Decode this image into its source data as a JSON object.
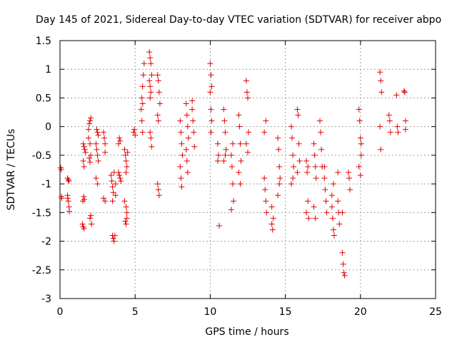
{
  "chart_data": {
    "type": "scatter",
    "title": "Day 145 of 2021, Sidereal Day-to-day VTEC variation (SDTVAR) for receiver abpo",
    "xlabel": "GPS time / hours",
    "ylabel": "SDTVAR / TECUs",
    "xlim": [
      0,
      25
    ],
    "ylim": [
      -3,
      1.5
    ],
    "xticks": [
      0,
      5,
      10,
      15,
      20,
      25
    ],
    "yticks": [
      -3,
      -2.5,
      -2,
      -1.5,
      -1,
      -0.5,
      0,
      0.5,
      1,
      1.5
    ],
    "xtick_labels": [
      "0",
      "5",
      "10",
      "15",
      "20",
      "25"
    ],
    "ytick_labels": [
      "-3",
      "-2.5",
      "-2",
      "-1.5",
      "-1",
      "-0.5",
      "0",
      "0.5",
      "1",
      "1.5"
    ],
    "grid": true,
    "marker": "plus",
    "color": "#e00000",
    "series": [
      {
        "name": "SDTVAR",
        "points": [
          [
            0.05,
            -0.72
          ],
          [
            0.08,
            -0.75
          ],
          [
            0.1,
            -1.22
          ],
          [
            0.12,
            -1.25
          ],
          [
            0.5,
            -0.9
          ],
          [
            0.55,
            -0.93
          ],
          [
            0.6,
            -0.95
          ],
          [
            0.5,
            -1.2
          ],
          [
            0.55,
            -1.3
          ],
          [
            0.6,
            -1.4
          ],
          [
            0.62,
            -1.48
          ],
          [
            0.52,
            -1.25
          ],
          [
            1.5,
            -1.7
          ],
          [
            1.55,
            -1.75
          ],
          [
            1.6,
            -1.78
          ],
          [
            1.52,
            -1.3
          ],
          [
            1.58,
            -1.22
          ],
          [
            1.62,
            -1.27
          ],
          [
            1.55,
            -0.3
          ],
          [
            1.6,
            -0.35
          ],
          [
            1.65,
            -0.4
          ],
          [
            1.7,
            -0.45
          ],
          [
            1.55,
            -0.6
          ],
          [
            1.6,
            -0.7
          ],
          [
            1.9,
            -0.05
          ],
          [
            1.95,
            0.05
          ],
          [
            2.0,
            0.1
          ],
          [
            2.05,
            0.15
          ],
          [
            1.9,
            -0.2
          ],
          [
            2.0,
            -0.3
          ],
          [
            1.95,
            -0.55
          ],
          [
            2.0,
            -0.62
          ],
          [
            2.05,
            -0.5
          ],
          [
            2.0,
            -1.6
          ],
          [
            2.05,
            -1.55
          ],
          [
            2.1,
            -1.7
          ],
          [
            2.4,
            -0.3
          ],
          [
            2.45,
            -0.4
          ],
          [
            2.5,
            -0.5
          ],
          [
            2.55,
            -0.6
          ],
          [
            2.4,
            -0.9
          ],
          [
            2.5,
            -1.0
          ],
          [
            2.45,
            -0.05
          ],
          [
            2.5,
            -0.1
          ],
          [
            2.55,
            -0.15
          ],
          [
            2.9,
            -0.1
          ],
          [
            2.95,
            -0.2
          ],
          [
            3.0,
            -0.3
          ],
          [
            3.0,
            -0.45
          ],
          [
            2.9,
            -1.25
          ],
          [
            3.0,
            -1.3
          ],
          [
            3.4,
            -0.85
          ],
          [
            3.45,
            -0.95
          ],
          [
            3.5,
            -1.05
          ],
          [
            3.55,
            -1.15
          ],
          [
            3.6,
            -0.8
          ],
          [
            3.5,
            -1.3
          ],
          [
            3.5,
            -1.9
          ],
          [
            3.55,
            -1.95
          ],
          [
            3.6,
            -2.0
          ],
          [
            3.65,
            -1.9
          ],
          [
            3.7,
            -1.0
          ],
          [
            3.7,
            -1.2
          ],
          [
            3.9,
            -0.8
          ],
          [
            3.95,
            -0.85
          ],
          [
            4.0,
            -0.9
          ],
          [
            4.05,
            -0.95
          ],
          [
            3.9,
            -0.3
          ],
          [
            3.95,
            -0.2
          ],
          [
            4.0,
            -0.25
          ],
          [
            4.3,
            -0.4
          ],
          [
            4.35,
            -0.5
          ],
          [
            4.4,
            -0.6
          ],
          [
            4.45,
            -0.7
          ],
          [
            4.3,
            -1.3
          ],
          [
            4.4,
            -1.4
          ],
          [
            4.45,
            -1.5
          ],
          [
            4.35,
            -1.65
          ],
          [
            4.4,
            -1.7
          ],
          [
            4.45,
            -1.6
          ],
          [
            4.4,
            -0.8
          ],
          [
            4.5,
            -0.45
          ],
          [
            4.9,
            -0.1
          ],
          [
            4.95,
            -0.05
          ],
          [
            5.0,
            -0.15
          ],
          [
            5.4,
            0.3
          ],
          [
            5.45,
            0.5
          ],
          [
            5.5,
            0.7
          ],
          [
            5.55,
            0.9
          ],
          [
            5.6,
            1.1
          ],
          [
            5.5,
            0.4
          ],
          [
            5.45,
            0.1
          ],
          [
            5.5,
            -0.1
          ],
          [
            5.95,
            1.3
          ],
          [
            6.0,
            1.2
          ],
          [
            6.05,
            1.1
          ],
          [
            6.1,
            0.9
          ],
          [
            5.95,
            0.8
          ],
          [
            6.0,
            0.7
          ],
          [
            6.05,
            0.6
          ],
          [
            6.0,
            0.5
          ],
          [
            6.0,
            -0.1
          ],
          [
            6.05,
            -0.2
          ],
          [
            6.1,
            -0.35
          ],
          [
            6.5,
            0.9
          ],
          [
            6.55,
            0.8
          ],
          [
            6.6,
            0.6
          ],
          [
            6.65,
            0.4
          ],
          [
            6.5,
            0.2
          ],
          [
            6.55,
            0.1
          ],
          [
            6.5,
            -1.0
          ],
          [
            6.55,
            -1.1
          ],
          [
            6.6,
            -1.2
          ],
          [
            8.0,
            0.1
          ],
          [
            8.05,
            -0.1
          ],
          [
            8.1,
            -0.3
          ],
          [
            8.15,
            -0.5
          ],
          [
            8.0,
            -0.7
          ],
          [
            8.05,
            -0.9
          ],
          [
            8.1,
            -1.05
          ],
          [
            8.4,
            0.4
          ],
          [
            8.45,
            0.2
          ],
          [
            8.5,
            0.0
          ],
          [
            8.55,
            -0.2
          ],
          [
            8.4,
            -0.4
          ],
          [
            8.45,
            -0.6
          ],
          [
            8.5,
            -0.8
          ],
          [
            8.8,
            0.3
          ],
          [
            8.85,
            0.1
          ],
          [
            8.9,
            -0.1
          ],
          [
            8.95,
            -0.35
          ],
          [
            8.8,
            0.45
          ],
          [
            10.0,
            1.1
          ],
          [
            10.05,
            0.9
          ],
          [
            10.1,
            0.7
          ],
          [
            10.0,
            0.6
          ],
          [
            10.05,
            0.3
          ],
          [
            10.1,
            0.1
          ],
          [
            10.05,
            -0.1
          ],
          [
            10.5,
            -0.3
          ],
          [
            10.55,
            -0.5
          ],
          [
            10.6,
            -1.73
          ],
          [
            10.5,
            -0.6
          ],
          [
            10.9,
            0.3
          ],
          [
            10.95,
            0.1
          ],
          [
            11.0,
            -0.1
          ],
          [
            11.05,
            -0.4
          ],
          [
            10.9,
            -0.6
          ],
          [
            11.0,
            -0.5
          ],
          [
            11.4,
            -0.5
          ],
          [
            11.45,
            -0.7
          ],
          [
            11.5,
            -1.0
          ],
          [
            11.55,
            -1.3
          ],
          [
            11.4,
            -1.45
          ],
          [
            11.5,
            -0.3
          ],
          [
            11.9,
            0.2
          ],
          [
            11.95,
            0.0
          ],
          [
            12.0,
            -0.3
          ],
          [
            12.05,
            -0.6
          ],
          [
            11.9,
            -0.8
          ],
          [
            12.0,
            -1.0
          ],
          [
            12.4,
            0.8
          ],
          [
            12.45,
            0.6
          ],
          [
            12.5,
            0.5
          ],
          [
            12.55,
            -0.1
          ],
          [
            12.4,
            -0.3
          ],
          [
            12.5,
            -0.45
          ],
          [
            13.6,
            -0.9
          ],
          [
            13.65,
            -1.1
          ],
          [
            13.7,
            -1.3
          ],
          [
            13.75,
            -1.5
          ],
          [
            13.6,
            -0.1
          ],
          [
            13.7,
            0.1
          ],
          [
            14.1,
            -1.7
          ],
          [
            14.15,
            -1.8
          ],
          [
            14.2,
            -1.6
          ],
          [
            14.1,
            -1.4
          ],
          [
            14.5,
            -0.2
          ],
          [
            14.55,
            -0.4
          ],
          [
            14.6,
            -0.7
          ],
          [
            14.65,
            -0.9
          ],
          [
            14.5,
            -1.2
          ],
          [
            14.6,
            -1.0
          ],
          [
            15.4,
            0.0
          ],
          [
            15.45,
            -0.2
          ],
          [
            15.5,
            -0.5
          ],
          [
            15.55,
            -0.7
          ],
          [
            15.4,
            -1.0
          ],
          [
            15.5,
            -0.9
          ],
          [
            15.8,
            0.3
          ],
          [
            15.85,
            0.2
          ],
          [
            15.9,
            -0.3
          ],
          [
            15.95,
            -0.6
          ],
          [
            15.8,
            -0.8
          ],
          [
            16.4,
            -0.6
          ],
          [
            16.45,
            -0.8
          ],
          [
            16.5,
            -1.3
          ],
          [
            16.55,
            -1.6
          ],
          [
            16.4,
            -1.5
          ],
          [
            16.5,
            -0.7
          ],
          [
            16.9,
            -0.3
          ],
          [
            16.95,
            -0.5
          ],
          [
            17.0,
            -0.7
          ],
          [
            17.05,
            -0.9
          ],
          [
            16.9,
            -1.4
          ],
          [
            17.0,
            -1.6
          ],
          [
            17.3,
            0.1
          ],
          [
            17.35,
            -0.1
          ],
          [
            17.4,
            -0.4
          ],
          [
            17.45,
            -0.7
          ],
          [
            17.6,
            -0.9
          ],
          [
            17.65,
            -1.1
          ],
          [
            17.7,
            -1.3
          ],
          [
            17.75,
            -1.5
          ],
          [
            17.6,
            -0.7
          ],
          [
            18.1,
            -1.4
          ],
          [
            18.15,
            -1.6
          ],
          [
            18.2,
            -1.8
          ],
          [
            18.25,
            -1.9
          ],
          [
            18.1,
            -1.2
          ],
          [
            18.2,
            -1.0
          ],
          [
            18.5,
            -1.3
          ],
          [
            18.55,
            -1.5
          ],
          [
            18.6,
            -1.7
          ],
          [
            18.5,
            -0.8
          ],
          [
            18.8,
            -2.2
          ],
          [
            18.85,
            -2.4
          ],
          [
            18.9,
            -2.55
          ],
          [
            18.95,
            -2.6
          ],
          [
            18.8,
            -1.5
          ],
          [
            19.2,
            -0.8
          ],
          [
            19.25,
            -0.9
          ],
          [
            19.3,
            -1.1
          ],
          [
            19.9,
            0.3
          ],
          [
            19.95,
            0.1
          ],
          [
            20.0,
            -0.2
          ],
          [
            20.05,
            -0.5
          ],
          [
            19.9,
            -0.7
          ],
          [
            20.0,
            -0.85
          ],
          [
            20.05,
            -0.3
          ],
          [
            21.3,
            0.95
          ],
          [
            21.35,
            0.8
          ],
          [
            21.4,
            0.6
          ],
          [
            21.3,
            0.0
          ],
          [
            21.35,
            -0.4
          ],
          [
            21.9,
            0.2
          ],
          [
            21.95,
            0.1
          ],
          [
            22.0,
            -0.1
          ],
          [
            22.4,
            0.55
          ],
          [
            22.45,
            0.0
          ],
          [
            22.5,
            -0.1
          ],
          [
            22.9,
            0.62
          ],
          [
            22.95,
            0.6
          ],
          [
            23.0,
            0.1
          ],
          [
            23.0,
            -0.05
          ]
        ]
      }
    ]
  }
}
